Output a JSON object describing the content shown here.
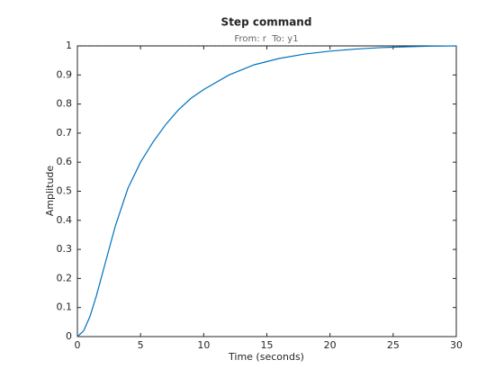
{
  "chart_data": {
    "type": "line",
    "title": "Step command",
    "subtitle": "From: r  To: y1",
    "x_label": "Time (seconds)",
    "y_label": "Amplitude",
    "x": [
      0,
      0.5,
      1,
      1.5,
      2,
      2.5,
      3,
      4,
      5,
      6,
      7,
      8,
      9,
      10,
      12,
      14,
      16,
      18,
      20,
      22,
      24,
      26,
      28,
      30
    ],
    "series": [
      {
        "color": "#0072bd",
        "values": [
          0,
          0.02,
          0.07,
          0.14,
          0.22,
          0.3,
          0.38,
          0.51,
          0.6,
          0.67,
          0.73,
          0.78,
          0.82,
          0.85,
          0.9,
          0.935,
          0.957,
          0.972,
          0.982,
          0.989,
          0.994,
          0.997,
          0.999,
          1
        ]
      }
    ],
    "steady_state": 1,
    "xlim": [
      0,
      30
    ],
    "xticks": [
      0,
      5,
      10,
      15,
      20,
      25,
      30
    ],
    "ylim": [
      0,
      1
    ],
    "yticks": [
      0,
      0.1,
      0.2,
      0.3,
      0.4,
      0.5,
      0.6,
      0.7,
      0.8,
      0.9,
      1
    ]
  }
}
